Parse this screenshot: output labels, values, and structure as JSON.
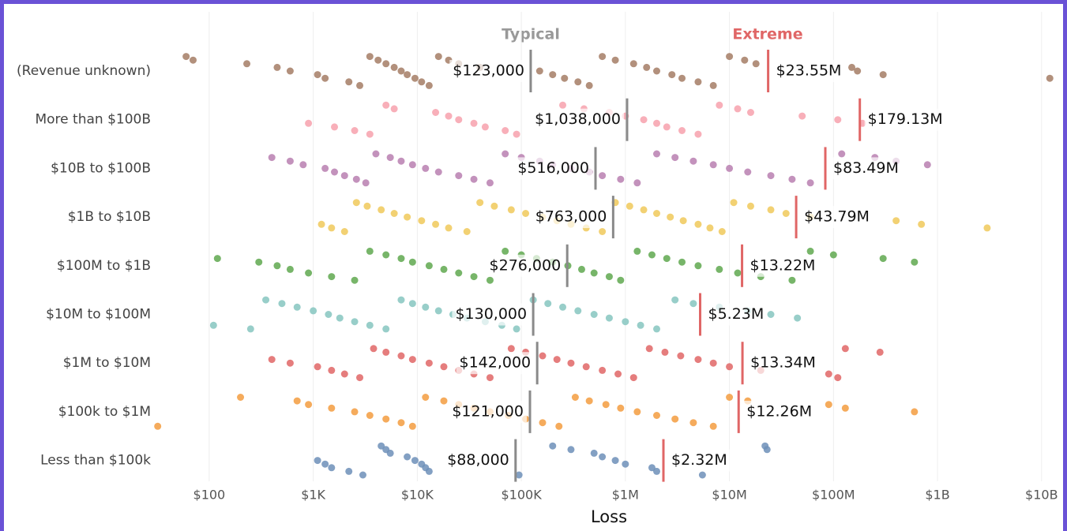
{
  "chart_data": {
    "type": "strip",
    "title_typical": "Typical",
    "title_extreme": "Extreme",
    "x_label": "Loss",
    "log_x": true,
    "xlim": [
      30,
      15000000000
    ],
    "xticks": [
      {
        "value": 100,
        "label": "$100"
      },
      {
        "value": 1000,
        "label": "$1K"
      },
      {
        "value": 10000,
        "label": "$10K"
      },
      {
        "value": 100000,
        "label": "$100K"
      },
      {
        "value": 1000000,
        "label": "$1M"
      },
      {
        "value": 10000000,
        "label": "$10M"
      },
      {
        "value": 100000000,
        "label": "$100M"
      },
      {
        "value": 1000000000,
        "label": "$1B"
      },
      {
        "value": 10000000000,
        "label": "$10B"
      }
    ],
    "grid": true,
    "typical_color": "#8a8a8a",
    "extreme_color": "#e06666",
    "categories": [
      "(Revenue unknown)",
      "More than $100B",
      "$10B to $100B",
      "$1B to $10B",
      "$100M to $1B",
      "$10M to $100M",
      "$1M to $10M",
      "$100k to $1M",
      "Less than $100k"
    ],
    "colors": [
      "#a57c65",
      "#f7a1ad",
      "#b87fb0",
      "#f0c95a",
      "#5fa84f",
      "#86c5c0",
      "#e06666",
      "#f39c40",
      "#6d8fb8"
    ],
    "points": [
      [
        60,
        70,
        230,
        450,
        600,
        1100,
        1300,
        2200,
        2800,
        3500,
        4200,
        5000,
        6000,
        7000,
        8000,
        9500,
        11000,
        13000,
        16000,
        20000,
        25000,
        40000,
        150000,
        200000,
        260000,
        350000,
        450000,
        600000,
        800000,
        1200000,
        1600000,
        2000000,
        2800000,
        3500000,
        5000000,
        7000000,
        10000000,
        14000000,
        18000000,
        150000000,
        170000000,
        300000000,
        12000000000
      ],
      [
        900,
        1600,
        2500,
        3500,
        5000,
        6000,
        15000,
        20000,
        25000,
        35000,
        45000,
        70000,
        90000,
        250000,
        400000,
        700000,
        1000000,
        1500000,
        2000000,
        2500000,
        3500000,
        5000000,
        8000000,
        12000000,
        16000000,
        50000000,
        110000000,
        190000000
      ],
      [
        400,
        600,
        800,
        1300,
        1600,
        2000,
        2600,
        3200,
        4000,
        5500,
        7000,
        9000,
        12000,
        16000,
        25000,
        35000,
        50000,
        70000,
        100000,
        150000,
        200000,
        300000,
        450000,
        600000,
        900000,
        1300000,
        2000000,
        3000000,
        4500000,
        7000000,
        10000000,
        15000000,
        25000000,
        40000000,
        60000000,
        120000000,
        250000000,
        400000000,
        800000000
      ],
      [
        1200,
        1500,
        2000,
        2600,
        3300,
        4500,
        6000,
        8000,
        11000,
        15000,
        20000,
        30000,
        40000,
        55000,
        80000,
        110000,
        160000,
        220000,
        300000,
        420000,
        600000,
        800000,
        1100000,
        1500000,
        2000000,
        2700000,
        3600000,
        5000000,
        6500000,
        8500000,
        11000000,
        16000000,
        25000000,
        35000000,
        60000000,
        400000000,
        700000000,
        3000000000
      ],
      [
        120,
        300,
        450,
        600,
        900,
        1500,
        2500,
        3500,
        5000,
        7000,
        9000,
        13000,
        18000,
        25000,
        35000,
        50000,
        70000,
        100000,
        140000,
        200000,
        280000,
        380000,
        500000,
        700000,
        900000,
        1300000,
        1800000,
        2500000,
        3500000,
        5000000,
        8000000,
        12000000,
        20000000,
        40000000,
        60000000,
        100000000,
        300000000,
        600000000
      ],
      [
        110,
        250,
        350,
        500,
        700,
        1000,
        1400,
        1800,
        2500,
        3500,
        5000,
        7000,
        9000,
        12000,
        16000,
        22000,
        30000,
        45000,
        65000,
        90000,
        130000,
        180000,
        250000,
        350000,
        500000,
        700000,
        1000000,
        1400000,
        2000000,
        3000000,
        4500000,
        8000000,
        15000000,
        25000000,
        45000000
      ],
      [
        400,
        600,
        1100,
        1500,
        2000,
        2800,
        3800,
        5000,
        7000,
        9000,
        13000,
        18000,
        25000,
        35000,
        50000,
        80000,
        110000,
        160000,
        220000,
        300000,
        420000,
        600000,
        850000,
        1200000,
        1700000,
        2400000,
        3400000,
        5000000,
        7000000,
        10000000,
        20000000,
        90000000,
        110000000,
        130000000,
        280000000
      ],
      [
        32,
        200,
        700,
        900,
        1500,
        2500,
        3500,
        5000,
        7000,
        9000,
        12000,
        18000,
        25000,
        35000,
        50000,
        75000,
        110000,
        160000,
        230000,
        330000,
        450000,
        650000,
        900000,
        1300000,
        2000000,
        3000000,
        4500000,
        7000000,
        10000000,
        15000000,
        90000000,
        130000000,
        600000000
      ],
      [
        1100,
        1300,
        1500,
        2200,
        3000,
        4500,
        5000,
        5500,
        8000,
        9500,
        11000,
        12000,
        13000,
        95000,
        200000,
        300000,
        500000,
        600000,
        800000,
        1000000,
        1800000,
        2000000,
        5500000,
        22000000,
        23000000
      ]
    ],
    "typical": [
      123000,
      1038000,
      516000,
      763000,
      276000,
      130000,
      142000,
      121000,
      88000
    ],
    "typical_labels": [
      "$123,000",
      "$1,038,000",
      "$516,000",
      "$763,000",
      "$276,000",
      "$130,000",
      "$142,000",
      "$121,000",
      "$88,000"
    ],
    "extreme": [
      23550000,
      179130000,
      83490000,
      43790000,
      13220000,
      5230000,
      13340000,
      12260000,
      2320000
    ],
    "extreme_labels": [
      "$23.55M",
      "$179.13M",
      "$83.49M",
      "$43.79M",
      "$13.22M",
      "$5.23M",
      "$13.34M",
      "$12.26M",
      "$2.32M"
    ]
  }
}
